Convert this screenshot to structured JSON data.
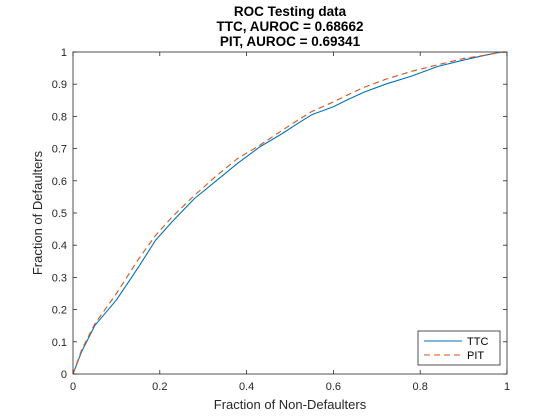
{
  "chart_data": {
    "type": "line",
    "title_lines": [
      "ROC Testing data",
      "TTC, AUROC = 0.68662",
      "PIT, AUROC = 0.69341"
    ],
    "xlabel": "Fraction of Non-Defaulters",
    "ylabel": "Fraction of Defaulters",
    "xlim": [
      0,
      1
    ],
    "ylim": [
      0,
      1
    ],
    "x_ticks": [
      0,
      0.2,
      0.4,
      0.6,
      0.8,
      1
    ],
    "x_tick_labels": [
      "0",
      "0.2",
      "0.4",
      "0.6",
      "0.8",
      "1"
    ],
    "y_ticks": [
      0,
      0.1,
      0.2,
      0.3,
      0.4,
      0.5,
      0.6,
      0.7,
      0.8,
      0.9,
      1
    ],
    "y_tick_labels": [
      "0",
      "0.1",
      "0.2",
      "0.3",
      "0.4",
      "0.5",
      "0.6",
      "0.7",
      "0.8",
      "0.9",
      "1"
    ],
    "grid": false,
    "legend_placement": "bottom-right",
    "series": [
      {
        "name": "TTC",
        "color": "#0072BD",
        "dash": "solid",
        "x": [
          0,
          0.02,
          0.05,
          0.1,
          0.15,
          0.19,
          0.23,
          0.28,
          0.33,
          0.38,
          0.43,
          0.48,
          0.52,
          0.55,
          0.6,
          0.63,
          0.67,
          0.72,
          0.78,
          0.84,
          0.9,
          0.95,
          0.98,
          1
        ],
        "y": [
          0,
          0.07,
          0.15,
          0.23,
          0.33,
          0.415,
          0.475,
          0.545,
          0.6,
          0.655,
          0.705,
          0.745,
          0.78,
          0.805,
          0.83,
          0.85,
          0.875,
          0.9,
          0.925,
          0.955,
          0.975,
          0.99,
          0.998,
          1
        ]
      },
      {
        "name": "PIT",
        "color": "#D95319",
        "dash": "dashed",
        "x": [
          0,
          0.02,
          0.05,
          0.1,
          0.15,
          0.19,
          0.23,
          0.28,
          0.33,
          0.38,
          0.43,
          0.48,
          0.52,
          0.55,
          0.6,
          0.63,
          0.67,
          0.72,
          0.78,
          0.84,
          0.9,
          0.95,
          0.98,
          1
        ],
        "y": [
          0,
          0.075,
          0.155,
          0.25,
          0.355,
          0.43,
          0.49,
          0.555,
          0.615,
          0.67,
          0.71,
          0.755,
          0.79,
          0.815,
          0.845,
          0.865,
          0.89,
          0.915,
          0.94,
          0.96,
          0.98,
          0.99,
          0.998,
          1
        ]
      }
    ]
  }
}
